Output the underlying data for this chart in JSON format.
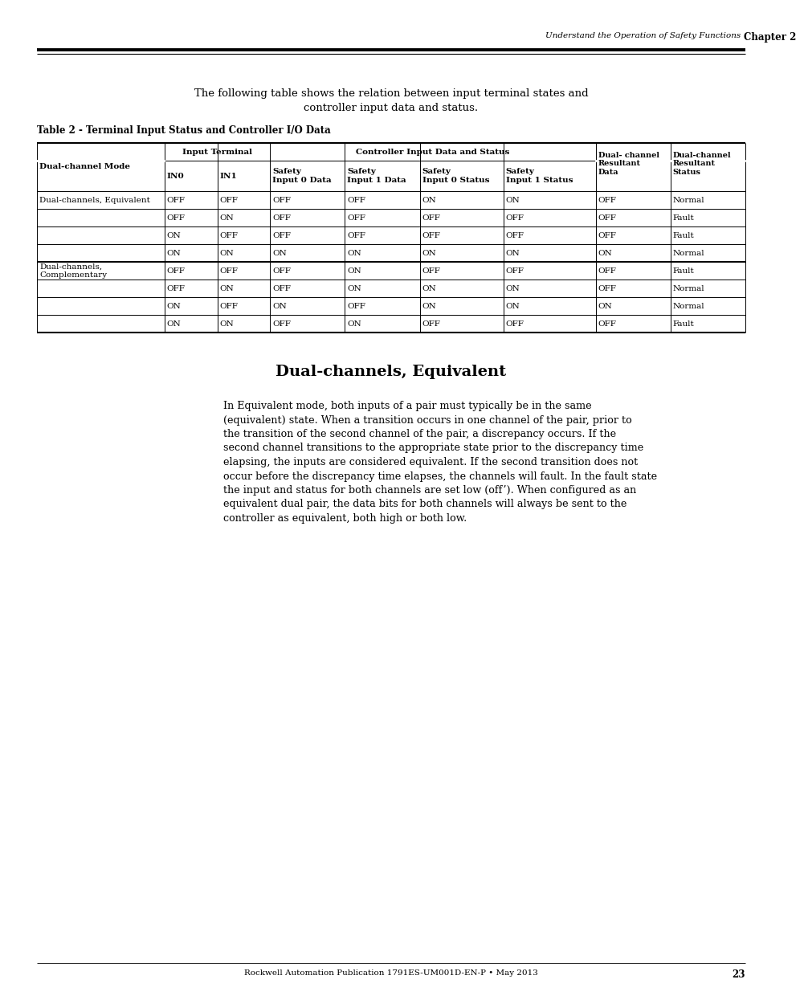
{
  "page_header_left": "Understand the Operation of Safety Functions",
  "page_header_right": "Chapter 2",
  "intro_text_line1": "The following table shows the relation between input terminal states and",
  "intro_text_line2": "controller input data and status.",
  "table_title": "Table 2 - Terminal Input Status and Controller I/O Data",
  "table_data": [
    [
      "Dual-channels, Equivalent",
      "OFF",
      "OFF",
      "OFF",
      "OFF",
      "ON",
      "ON",
      "OFF",
      "Normal"
    ],
    [
      "",
      "OFF",
      "ON",
      "OFF",
      "OFF",
      "OFF",
      "OFF",
      "OFF",
      "Fault"
    ],
    [
      "",
      "ON",
      "OFF",
      "OFF",
      "OFF",
      "OFF",
      "OFF",
      "OFF",
      "Fault"
    ],
    [
      "",
      "ON",
      "ON",
      "ON",
      "ON",
      "ON",
      "ON",
      "ON",
      "Normal"
    ],
    [
      "Dual-channels,\nComplementary",
      "OFF",
      "OFF",
      "OFF",
      "ON",
      "OFF",
      "OFF",
      "OFF",
      "Fault"
    ],
    [
      "",
      "OFF",
      "ON",
      "OFF",
      "ON",
      "ON",
      "ON",
      "OFF",
      "Normal"
    ],
    [
      "",
      "ON",
      "OFF",
      "ON",
      "OFF",
      "ON",
      "ON",
      "ON",
      "Normal"
    ],
    [
      "",
      "ON",
      "ON",
      "OFF",
      "ON",
      "OFF",
      "OFF",
      "OFF",
      "Fault"
    ]
  ],
  "section_title": "Dual-channels, Equivalent",
  "body_text": [
    "In Equivalent mode, both inputs of a pair must typically be in the same",
    "(equivalent) state. When a transition occurs in one channel of the pair, prior to",
    "the transition of the second channel of the pair, a discrepancy occurs. If the",
    "second channel transitions to the appropriate state prior to the discrepancy time",
    "elapsing, the inputs are considered equivalent. If the second transition does not",
    "occur before the discrepancy time elapses, the channels will fault. In the fault state",
    "the input and status for both channels are set low (off’). When configured as an",
    "equivalent dual pair, the data bits for both channels will always be sent to the",
    "controller as equivalent, both high or both low."
  ],
  "footer_text": "Rockwell Automation Publication 1791ES-UM001D-EN-P • May 2013",
  "footer_page": "23",
  "bg_color": "#ffffff"
}
